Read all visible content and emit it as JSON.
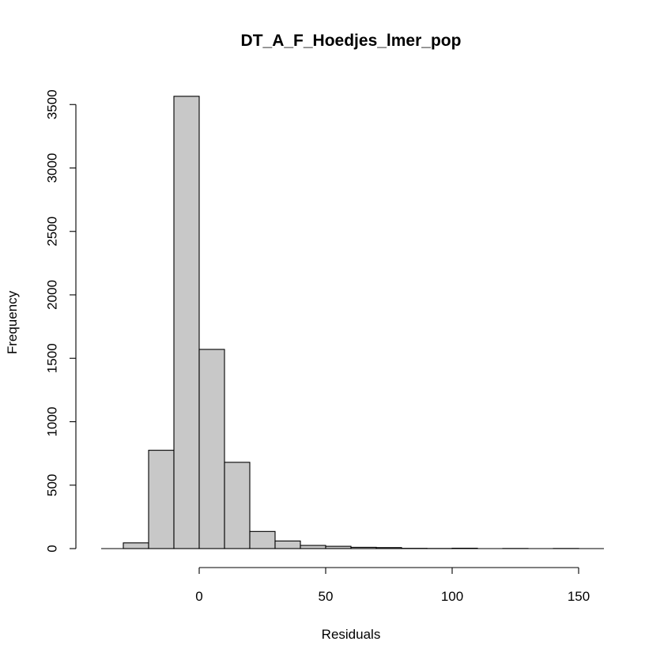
{
  "chart_data": {
    "type": "bar",
    "title": "DT_A_F_Hoedjes_lmer_pop",
    "xlabel": "Residuals",
    "ylabel": "Frequency",
    "bin_width": 10,
    "bins": [
      {
        "start": -30,
        "end": -20,
        "count": 45
      },
      {
        "start": -20,
        "end": -10,
        "count": 775
      },
      {
        "start": -10,
        "end": 0,
        "count": 3565
      },
      {
        "start": 0,
        "end": 10,
        "count": 1570
      },
      {
        "start": 10,
        "end": 20,
        "count": 680
      },
      {
        "start": 20,
        "end": 30,
        "count": 135
      },
      {
        "start": 30,
        "end": 40,
        "count": 60
      },
      {
        "start": 40,
        "end": 50,
        "count": 25
      },
      {
        "start": 50,
        "end": 60,
        "count": 18
      },
      {
        "start": 60,
        "end": 70,
        "count": 10
      },
      {
        "start": 70,
        "end": 80,
        "count": 8
      },
      {
        "start": 80,
        "end": 90,
        "count": 2
      },
      {
        "start": 90,
        "end": 100,
        "count": 1
      },
      {
        "start": 100,
        "end": 110,
        "count": 3
      },
      {
        "start": 110,
        "end": 120,
        "count": 0
      },
      {
        "start": 120,
        "end": 130,
        "count": 1
      },
      {
        "start": 130,
        "end": 140,
        "count": 0
      },
      {
        "start": 140,
        "end": 150,
        "count": 1
      },
      {
        "start": 150,
        "end": 160,
        "count": 0
      }
    ],
    "xlim": [
      -40,
      160
    ],
    "ylim": [
      0,
      3600
    ],
    "x_ticks": [
      0,
      50,
      100,
      150
    ],
    "x_tick_labels": [
      "0",
      "50",
      "100",
      "150"
    ],
    "y_ticks": [
      0,
      500,
      1000,
      1500,
      2000,
      2500,
      3000,
      3500
    ],
    "y_tick_labels": [
      "0",
      "500",
      "1000",
      "1500",
      "2000",
      "2500",
      "3000",
      "3500"
    ],
    "grid": false,
    "legend": "none"
  }
}
